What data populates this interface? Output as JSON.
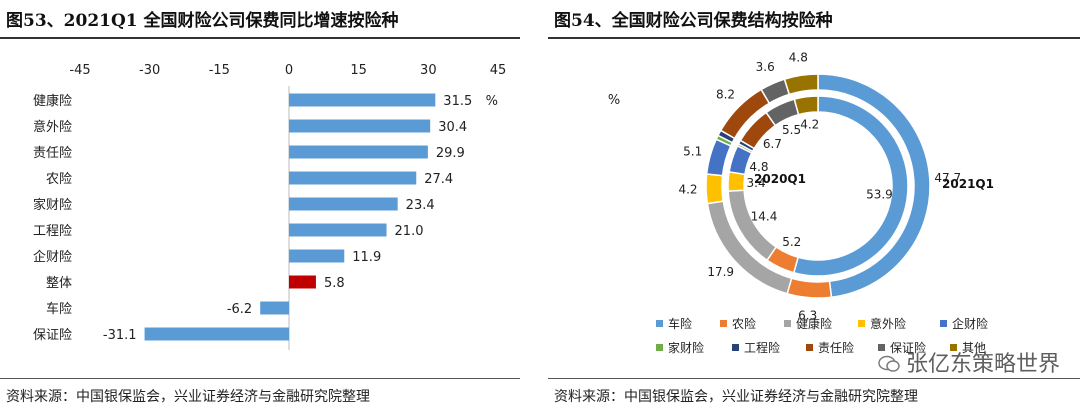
{
  "left_panel": {
    "title": "图53、2021Q1 全国财险公司保费同比增速按险种",
    "source": "资料来源：中国银保监会，兴业证券经济与金融研究院整理",
    "unit": "%"
  },
  "right_panel": {
    "title": "图54、全国财险公司保费结构按险种",
    "source": "资料来源：中国银保监会，兴业证券经济与金融研究院整理",
    "unit": "%",
    "inner_label": "2020Q1",
    "outer_label": "2021Q1"
  },
  "watermark": {
    "text": "张亿东策略世界"
  },
  "chart_data": [
    {
      "type": "bar",
      "orientation": "horizontal",
      "title": "2021Q1 全国财险公司保费同比增速按险种",
      "categories": [
        "健康险",
        "意外险",
        "责任险",
        "农险",
        "家财险",
        "工程险",
        "企财险",
        "整体",
        "车险",
        "保证险"
      ],
      "values": [
        31.5,
        30.4,
        29.9,
        27.4,
        23.4,
        21.0,
        11.9,
        5.8,
        -6.2,
        -31.1
      ],
      "value_labels": [
        "31.5",
        "30.4",
        "29.9",
        "27.4",
        "23.4",
        "21.0",
        "11.9",
        "5.8",
        "-6.2",
        "-31.1"
      ],
      "highlight_category": "整体",
      "colors": {
        "default": "#5b9bd5",
        "highlight": "#c00000"
      },
      "xlim": [
        -45,
        45
      ],
      "xticks": [
        -45,
        -30,
        -15,
        0,
        15,
        30,
        45
      ],
      "unit": "%"
    },
    {
      "type": "pie",
      "variant": "double-donut",
      "title": "全国财险公司保费结构按险种",
      "categories": [
        "车险",
        "农险",
        "健康险",
        "意外险",
        "企财险",
        "家财险",
        "工程险",
        "责任险",
        "保证险",
        "其他"
      ],
      "colors": [
        "#5b9bd5",
        "#ed7d31",
        "#a5a5a5",
        "#ffc000",
        "#4472c4",
        "#70ad47",
        "#264478",
        "#9e480e",
        "#636363",
        "#997300"
      ],
      "series": [
        {
          "name": "2021Q1",
          "ring": "outer",
          "values": [
            47.7,
            6.3,
            17.9,
            4.2,
            5.1,
            0.6,
            0.8,
            8.2,
            3.6,
            4.8
          ],
          "labels": [
            "47.7",
            "6.3",
            "17.9",
            "4.2",
            "5.1",
            "",
            "",
            "8.2",
            "3.6",
            "4.8"
          ]
        },
        {
          "name": "2020Q1",
          "ring": "inner",
          "values": [
            53.9,
            5.2,
            14.4,
            3.4,
            4.8,
            0.4,
            0.7,
            6.7,
            5.5,
            4.2
          ],
          "labels": [
            "53.9",
            "5.2",
            "14.4",
            "3.4",
            "4.8",
            "",
            "",
            "6.7",
            "5.5",
            "4.2"
          ]
        }
      ],
      "legend_position": "bottom",
      "unit": "%"
    }
  ]
}
